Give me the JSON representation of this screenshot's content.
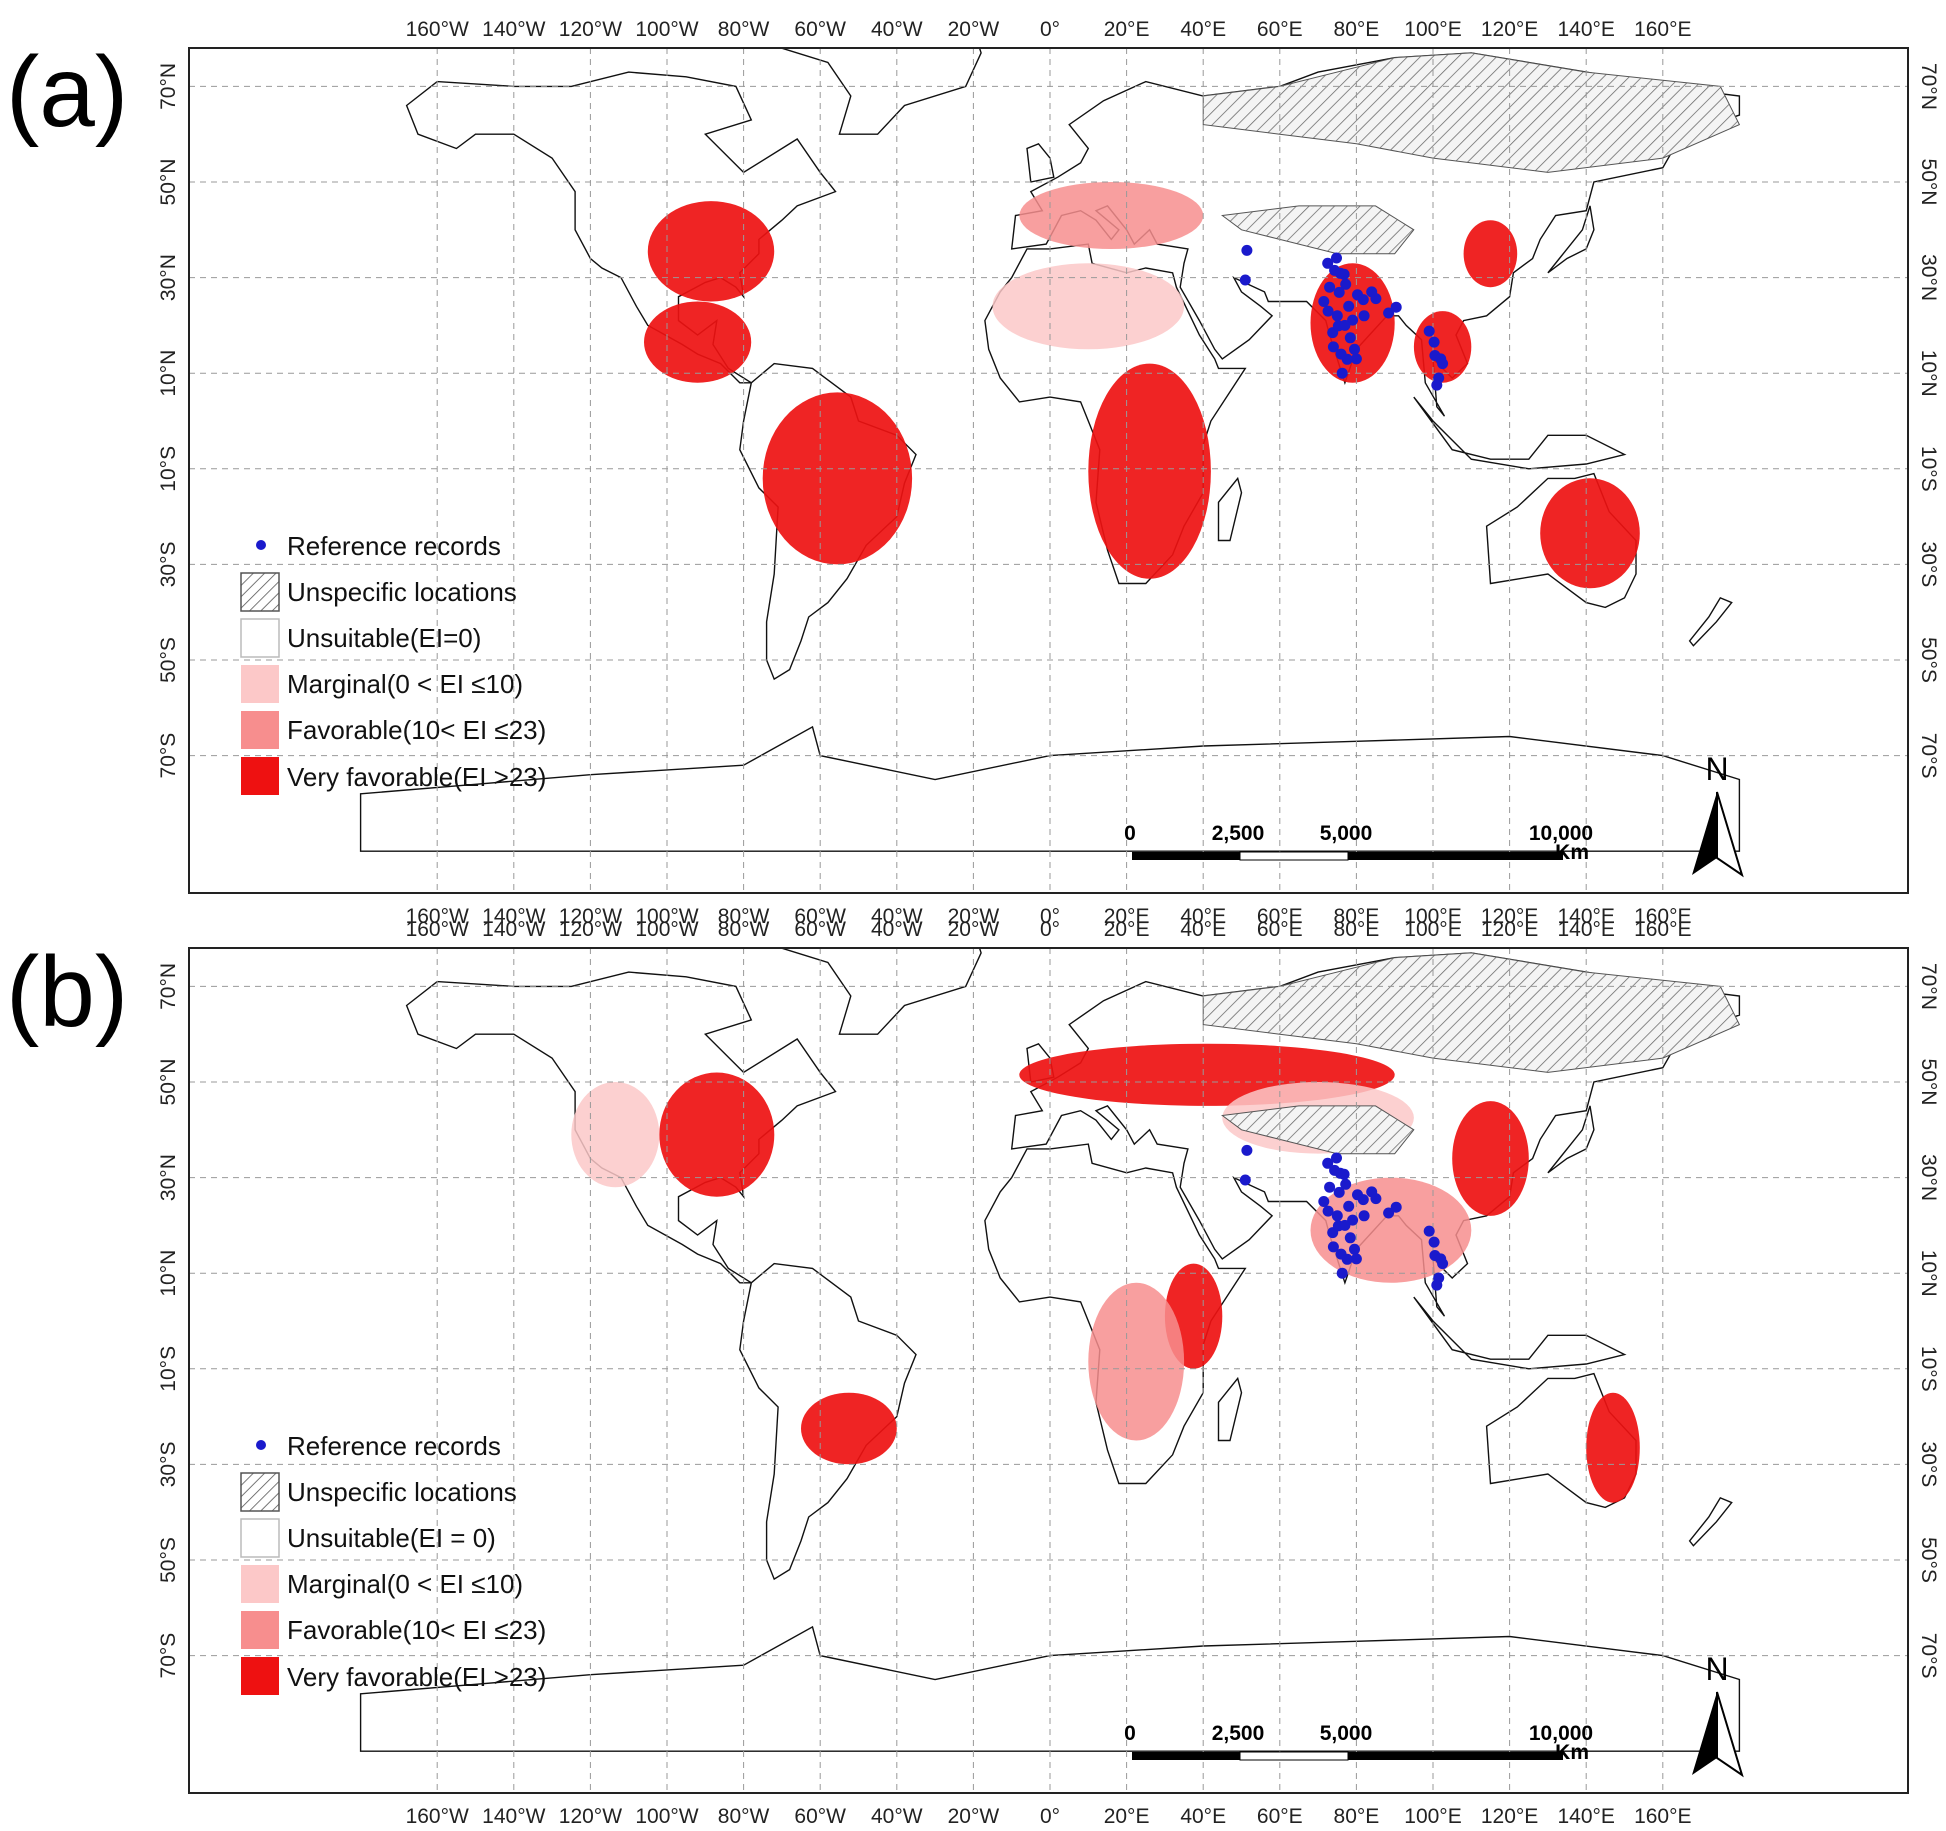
{
  "colors": {
    "unsuitable": "#ffffff",
    "marginal": "#fcc8c8",
    "favorable": "#f78e8e",
    "very_favorable": "#ee1111",
    "reference_records": "#1a1acc",
    "grid": "#999999"
  },
  "axes": {
    "lon_labels": [
      "160°W",
      "140°W",
      "120°W",
      "100°W",
      "80°W",
      "60°W",
      "40°W",
      "20°W",
      "0°",
      "20°E",
      "40°E",
      "60°E",
      "80°E",
      "100°E",
      "120°E",
      "140°E",
      "160°E"
    ],
    "lon_values": [
      -160,
      -140,
      -120,
      -100,
      -80,
      -60,
      -40,
      -20,
      0,
      20,
      40,
      60,
      80,
      100,
      120,
      140,
      160
    ],
    "lat_labels": [
      "70°N",
      "50°N",
      "30°N",
      "10°N",
      "10°S",
      "30°S",
      "50°S",
      "70°S"
    ],
    "lat_values": [
      70,
      50,
      30,
      10,
      -10,
      -30,
      -50,
      -70
    ]
  },
  "legend": {
    "reference_records": "Reference records",
    "unspecific_locations": "Unspecific locations",
    "marginal": "Marginal(0 < EI ≤10)",
    "favorable": "Favorable(10< EI ≤23)",
    "very_favorable": "Very favorable(EI >23)"
  },
  "scale_bar": {
    "labels": [
      "0",
      "2,500",
      "5,000",
      "10,000"
    ],
    "km_values": [
      0,
      2500,
      5000,
      10000
    ],
    "unit": "Km"
  },
  "north_arrow": {
    "label": "N"
  },
  "panels": [
    {
      "label": "(a)",
      "unsuitable_label": "Unsuitable(EI=0)",
      "suitability_regions": [
        {
          "class": "very_favorable",
          "name": "Eastern USA",
          "lon": [
            -105,
            -72
          ],
          "lat": [
            25,
            46
          ]
        },
        {
          "class": "very_favorable",
          "name": "Mexico & Central America",
          "lon": [
            -106,
            -78
          ],
          "lat": [
            8,
            25
          ]
        },
        {
          "class": "very_favorable",
          "name": "Amazon & Brazil",
          "lon": [
            -75,
            -36
          ],
          "lat": [
            -30,
            6
          ]
        },
        {
          "class": "very_favorable",
          "name": "Central & Southern Africa",
          "lon": [
            10,
            42
          ],
          "lat": [
            -33,
            12
          ]
        },
        {
          "class": "very_favorable",
          "name": "South Asia",
          "lon": [
            68,
            90
          ],
          "lat": [
            8,
            33
          ]
        },
        {
          "class": "very_favorable",
          "name": "Southeast Asia",
          "lon": [
            95,
            110
          ],
          "lat": [
            8,
            23
          ]
        },
        {
          "class": "very_favorable",
          "name": "Eastern China",
          "lon": [
            108,
            122
          ],
          "lat": [
            28,
            42
          ]
        },
        {
          "class": "very_favorable",
          "name": "Northern Australia",
          "lon": [
            128,
            154
          ],
          "lat": [
            -35,
            -12
          ]
        },
        {
          "class": "marginal",
          "name": "North Africa",
          "lon": [
            -15,
            35
          ],
          "lat": [
            15,
            33
          ]
        },
        {
          "class": "favorable",
          "name": "Europe Mediterranean",
          "lon": [
            -8,
            40
          ],
          "lat": [
            36,
            50
          ]
        }
      ],
      "reference_records": [
        [
          72.5,
          33.0
        ],
        [
          74.3,
          31.5
        ],
        [
          73.0,
          28.0
        ],
        [
          75.8,
          30.9
        ],
        [
          77.2,
          28.6
        ],
        [
          75.5,
          26.9
        ],
        [
          72.6,
          23.0
        ],
        [
          73.8,
          18.5
        ],
        [
          75.3,
          19.9
        ],
        [
          78.4,
          17.4
        ],
        [
          77.6,
          12.9
        ],
        [
          76.3,
          10.0
        ],
        [
          79.0,
          21.1
        ],
        [
          80.3,
          26.4
        ],
        [
          81.8,
          25.4
        ],
        [
          85.1,
          25.6
        ],
        [
          84.0,
          27.0
        ],
        [
          88.4,
          22.6
        ],
        [
          90.4,
          23.8
        ],
        [
          74.0,
          15.5
        ],
        [
          77.0,
          20.0
        ],
        [
          75.0,
          22.0
        ],
        [
          78.0,
          24.0
        ],
        [
          82.0,
          22.0
        ],
        [
          76.0,
          14.0
        ],
        [
          79.5,
          15.0
        ],
        [
          80.0,
          13.0
        ],
        [
          74.8,
          34.1
        ],
        [
          76.8,
          30.7
        ],
        [
          71.5,
          25.0
        ],
        [
          100.5,
          13.7
        ],
        [
          100.3,
          16.5
        ],
        [
          102.0,
          13.0
        ],
        [
          101.5,
          9.0
        ],
        [
          99.0,
          18.8
        ],
        [
          102.5,
          12.0
        ],
        [
          101.0,
          7.5
        ],
        [
          51.4,
          35.7
        ],
        [
          51.0,
          29.5
        ]
      ]
    },
    {
      "label": "(b)",
      "unsuitable_label": "Unsuitable(EI = 0)",
      "suitability_regions": [
        {
          "class": "very_favorable",
          "name": "Eastern USA",
          "lon": [
            -102,
            -72
          ],
          "lat": [
            26,
            52
          ]
        },
        {
          "class": "very_favorable",
          "name": "Europe & Western Russia",
          "lon": [
            -8,
            90
          ],
          "lat": [
            45,
            58
          ]
        },
        {
          "class": "very_favorable",
          "name": "Eastern China",
          "lon": [
            105,
            125
          ],
          "lat": [
            22,
            46
          ]
        },
        {
          "class": "very_favorable",
          "name": "East Africa",
          "lon": [
            30,
            45
          ],
          "lat": [
            -10,
            12
          ]
        },
        {
          "class": "very_favorable",
          "name": "Southern Brazil",
          "lon": [
            -65,
            -40
          ],
          "lat": [
            -30,
            -15
          ]
        },
        {
          "class": "very_favorable",
          "name": "Eastern Australia",
          "lon": [
            140,
            154
          ],
          "lat": [
            -38,
            -15
          ]
        },
        {
          "class": "favorable",
          "name": "Central Africa",
          "lon": [
            10,
            35
          ],
          "lat": [
            -25,
            8
          ]
        },
        {
          "class": "marginal",
          "name": "Western USA",
          "lon": [
            -125,
            -102
          ],
          "lat": [
            28,
            50
          ]
        },
        {
          "class": "favorable",
          "name": "South & Southeast Asia",
          "lon": [
            68,
            110
          ],
          "lat": [
            8,
            30
          ]
        },
        {
          "class": "marginal",
          "name": "Central Asia",
          "lon": [
            45,
            95
          ],
          "lat": [
            35,
            50
          ]
        }
      ],
      "reference_records": [
        [
          72.5,
          33.0
        ],
        [
          74.3,
          31.5
        ],
        [
          73.0,
          28.0
        ],
        [
          75.8,
          30.9
        ],
        [
          77.2,
          28.6
        ],
        [
          75.5,
          26.9
        ],
        [
          72.6,
          23.0
        ],
        [
          73.8,
          18.5
        ],
        [
          75.3,
          19.9
        ],
        [
          78.4,
          17.4
        ],
        [
          77.6,
          12.9
        ],
        [
          76.3,
          10.0
        ],
        [
          79.0,
          21.1
        ],
        [
          80.3,
          26.4
        ],
        [
          81.8,
          25.4
        ],
        [
          85.1,
          25.6
        ],
        [
          84.0,
          27.0
        ],
        [
          88.4,
          22.6
        ],
        [
          90.4,
          23.8
        ],
        [
          74.0,
          15.5
        ],
        [
          77.0,
          20.0
        ],
        [
          75.0,
          22.0
        ],
        [
          78.0,
          24.0
        ],
        [
          82.0,
          22.0
        ],
        [
          76.0,
          14.0
        ],
        [
          79.5,
          15.0
        ],
        [
          80.0,
          13.0
        ],
        [
          74.8,
          34.1
        ],
        [
          76.8,
          30.7
        ],
        [
          71.5,
          25.0
        ],
        [
          100.5,
          13.7
        ],
        [
          100.3,
          16.5
        ],
        [
          102.0,
          13.0
        ],
        [
          101.5,
          9.0
        ],
        [
          99.0,
          18.8
        ],
        [
          102.5,
          12.0
        ],
        [
          101.0,
          7.5
        ],
        [
          51.4,
          35.7
        ],
        [
          51.0,
          29.5
        ]
      ]
    }
  ]
}
